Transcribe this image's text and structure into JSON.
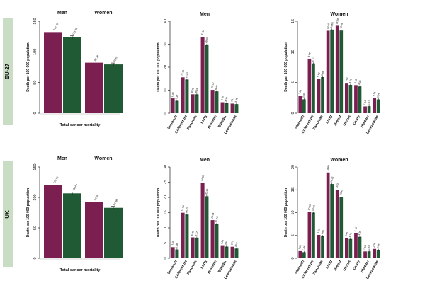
{
  "colors": {
    "first": "#7a1f4f",
    "second": "#1f5a35",
    "band": "#c9dcc4",
    "axis": "#222222"
  },
  "chart_data": [
    {
      "type": "bar",
      "row_label": "EU-27",
      "series_labels": [
        "Men",
        "Women"
      ],
      "categories": [
        "Men",
        "Women"
      ],
      "xlabel": "Total cancer mortality",
      "ylabel": "Death per 100 000 population",
      "ylim": [
        0,
        150
      ],
      "yticks": [
        0,
        50,
        100,
        150
      ],
      "values_first": [
        132.28,
        82.36
      ],
      "values_second": [
        123.75,
        79.51
      ],
      "labels_first": [
        "132.28",
        "82.36"
      ],
      "labels_second": [
        "123.75",
        "79.51"
      ]
    },
    {
      "type": "bar",
      "row_label": "EU-27",
      "title": "Men",
      "ylabel": "Death per 100 000 population",
      "ylim": [
        0,
        40
      ],
      "yticks": [
        0,
        10,
        20,
        30,
        40
      ],
      "categories": [
        "Stomach",
        "Colorectum",
        "Pancreas",
        "Lung",
        "Prostate",
        "Bladder",
        "Leukaemias"
      ],
      "values_first": [
        6.44,
        15.6,
        8.21,
        33.16,
        10.13,
        4.76,
        4.17
      ],
      "values_second": [
        5.37,
        14.65,
        8.19,
        29.76,
        9.49,
        4.32,
        3.95
      ],
      "labels_first": [
        "6.44",
        "15.60",
        "8.21",
        "33.16",
        "10.13",
        "4.76",
        "4.17"
      ],
      "labels_second": [
        "5.37",
        "14.65",
        "8.19",
        "29.76",
        "9.49",
        "4.32",
        "3.95"
      ]
    },
    {
      "type": "bar",
      "row_label": "EU-27",
      "title": "Women",
      "ylabel": "Death per 100 000 population",
      "ylim": [
        0,
        15
      ],
      "yticks": [
        0,
        5,
        10,
        15
      ],
      "categories": [
        "Stomach",
        "Colorectum",
        "Pancreas",
        "Lung",
        "Breast",
        "Uterus",
        "Ovary",
        "Bladder",
        "Leukaemias"
      ],
      "values_first": [
        2.83,
        8.89,
        5.63,
        13.45,
        14.26,
        4.83,
        4.58,
        1.1,
        2.51
      ],
      "values_second": [
        2.26,
        8.11,
        5.88,
        13.63,
        13.48,
        4.61,
        4.36,
        1.13,
        2.24
      ],
      "labels_first": [
        "2.83",
        "8.89",
        "5.63",
        "13.45",
        "14.26",
        "4.83",
        "4.58",
        "1.10",
        "2.51"
      ],
      "labels_second": [
        "2.26",
        "8.11",
        "5.88",
        "13.63",
        "13.48",
        "4.61",
        "4.36",
        "1.13",
        "2.24"
      ]
    },
    {
      "type": "bar",
      "row_label": "UK",
      "series_labels": [
        "Men",
        "Women"
      ],
      "categories": [
        "Men",
        "Women"
      ],
      "xlabel": "Total cancer mortality",
      "ylabel": "Death per 100 000 population",
      "ylim": [
        0,
        150
      ],
      "yticks": [
        0,
        50,
        100,
        150
      ],
      "values_first": [
        120.08,
        92.35
      ],
      "values_second": [
        106.64,
        82.88
      ],
      "labels_first": [
        "120.08",
        "92.35"
      ],
      "labels_second": [
        "106.64",
        "82.88"
      ]
    },
    {
      "type": "bar",
      "row_label": "UK",
      "title": "Men",
      "ylabel": "Death per 100 000 population",
      "ylim": [
        0,
        30
      ],
      "yticks": [
        0,
        5,
        10,
        15,
        20,
        25,
        30
      ],
      "categories": [
        "Stomach",
        "Colorectum",
        "Pancreas",
        "Lung",
        "Prostate",
        "Bladder",
        "Leukaemias"
      ],
      "values_first": [
        3.65,
        14.96,
        6.86,
        24.82,
        12.54,
        4.05,
        3.79
      ],
      "values_second": [
        2.88,
        14.37,
        6.77,
        20.37,
        11.24,
        3.84,
        3.19
      ],
      "labels_first": [
        "3.65",
        "14.96",
        "6.86",
        "24.82",
        "12.54",
        "4.05",
        "3.79"
      ],
      "labels_second": [
        "2.88",
        "14.37",
        "6.77",
        "20.37",
        "11.24",
        "3.84",
        "3.19"
      ]
    },
    {
      "type": "bar",
      "row_label": "UK",
      "title": "Women",
      "ylabel": "Death per 100 000 population",
      "ylim": [
        0,
        20
      ],
      "yticks": [
        0,
        5,
        10,
        15,
        20
      ],
      "categories": [
        "Stomach",
        "Colorectum",
        "Pancreas",
        "Lung",
        "Breast",
        "Uterus",
        "Ovary",
        "Bladder",
        "Leukaemias"
      ],
      "values_first": [
        1.57,
        10.15,
        5.12,
        18.8,
        15.01,
        4.41,
        5.46,
        1.5,
        2.05
      ],
      "values_second": [
        1.34,
        10.01,
        4.85,
        16.26,
        13.45,
        4.23,
        4.69,
        1.51,
        1.84
      ],
      "labels_first": [
        "1.57",
        "10.15",
        "5.12",
        "18.80",
        "15.01",
        "4.41",
        "5.46",
        "1.50",
        "2.05"
      ],
      "labels_second": [
        "1.34",
        "10.01",
        "4.85",
        "16.26",
        "13.45",
        "4.23",
        "4.69",
        "1.51",
        "1.84"
      ]
    }
  ]
}
